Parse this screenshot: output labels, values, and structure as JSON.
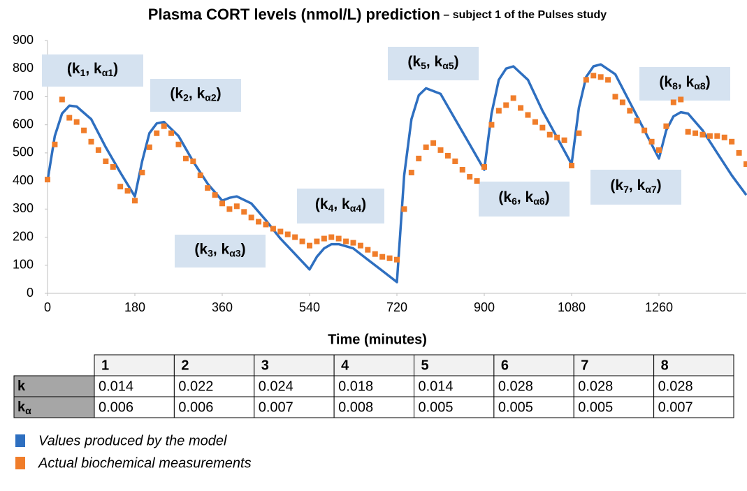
{
  "chart_data": {
    "type": "line",
    "title": "Plasma CORT levels (nmol/L) prediction",
    "subtitle": "– subject 1 of the Pulses study",
    "x_label": "Time (minutes)",
    "xlim": [
      0,
      1440
    ],
    "xticks": [
      0,
      180,
      360,
      540,
      720,
      900,
      1080,
      1260
    ],
    "ylim": [
      0,
      900
    ],
    "yticks": [
      0,
      100,
      200,
      300,
      400,
      500,
      600,
      700,
      800,
      900
    ],
    "series": [
      {
        "name": "Values produced by the model",
        "color": "#2e6fc0",
        "type": "line",
        "x": [
          0,
          15,
          30,
          45,
          60,
          90,
          120,
          150,
          180,
          195,
          210,
          225,
          240,
          270,
          300,
          330,
          360,
          375,
          390,
          420,
          450,
          480,
          510,
          540,
          555,
          570,
          585,
          600,
          630,
          660,
          690,
          720,
          735,
          750,
          765,
          780,
          810,
          840,
          870,
          900,
          915,
          930,
          945,
          960,
          990,
          1020,
          1050,
          1080,
          1095,
          1110,
          1125,
          1140,
          1170,
          1200,
          1230,
          1260,
          1275,
          1290,
          1305,
          1320,
          1350,
          1380,
          1410,
          1440
        ],
        "values": [
          400,
          560,
          640,
          668,
          665,
          620,
          520,
          430,
          345,
          470,
          570,
          605,
          610,
          560,
          470,
          390,
          330,
          340,
          345,
          320,
          260,
          195,
          140,
          85,
          130,
          160,
          175,
          175,
          160,
          120,
          80,
          40,
          420,
          620,
          705,
          730,
          710,
          620,
          530,
          440,
          640,
          760,
          800,
          808,
          760,
          650,
          555,
          460,
          660,
          770,
          808,
          815,
          780,
          680,
          580,
          480,
          580,
          630,
          645,
          640,
          580,
          500,
          420,
          350
        ]
      },
      {
        "name": "Actual biochemical measurements",
        "color": "#f07d2a",
        "type": "scatter",
        "x": [
          0,
          15,
          30,
          45,
          60,
          75,
          90,
          105,
          120,
          135,
          150,
          165,
          180,
          195,
          210,
          225,
          240,
          255,
          270,
          285,
          300,
          315,
          330,
          345,
          360,
          375,
          390,
          405,
          420,
          435,
          450,
          465,
          480,
          495,
          510,
          525,
          540,
          555,
          570,
          585,
          600,
          615,
          630,
          645,
          660,
          675,
          690,
          705,
          720,
          735,
          750,
          765,
          780,
          795,
          810,
          825,
          840,
          855,
          870,
          885,
          900,
          915,
          930,
          945,
          960,
          975,
          990,
          1005,
          1020,
          1035,
          1050,
          1065,
          1080,
          1095,
          1110,
          1125,
          1140,
          1155,
          1170,
          1185,
          1200,
          1215,
          1230,
          1245,
          1260,
          1275,
          1290,
          1305,
          1320,
          1335,
          1350,
          1365,
          1380,
          1395,
          1410,
          1425,
          1440
        ],
        "values": [
          405,
          530,
          690,
          625,
          610,
          580,
          540,
          510,
          470,
          450,
          380,
          365,
          330,
          430,
          520,
          570,
          595,
          570,
          530,
          480,
          470,
          420,
          375,
          350,
          320,
          300,
          310,
          290,
          270,
          255,
          245,
          230,
          220,
          210,
          200,
          185,
          170,
          185,
          195,
          200,
          195,
          185,
          180,
          170,
          155,
          140,
          130,
          125,
          120,
          300,
          430,
          480,
          520,
          535,
          510,
          490,
          470,
          440,
          415,
          400,
          450,
          600,
          650,
          670,
          695,
          660,
          635,
          610,
          590,
          565,
          555,
          545,
          455,
          570,
          760,
          775,
          770,
          760,
          700,
          680,
          650,
          615,
          580,
          540,
          510,
          595,
          680,
          690,
          575,
          570,
          565,
          560,
          560,
          555,
          540,
          500,
          460
        ]
      }
    ],
    "annotations": [
      {
        "parts": [
          "(k",
          "1",
          ", k",
          "α1",
          ")"
        ]
      },
      {
        "parts": [
          "(k",
          "2",
          ", k",
          "α2",
          ")"
        ]
      },
      {
        "parts": [
          "(k",
          "3",
          ", k",
          "α3",
          ")"
        ]
      },
      {
        "parts": [
          "(k",
          "4",
          ", k",
          "α4",
          ")"
        ]
      },
      {
        "parts": [
          "(k",
          "5",
          ", k",
          "α5",
          ")"
        ]
      },
      {
        "parts": [
          "(k",
          "6",
          ", k",
          "α6",
          ")"
        ]
      },
      {
        "parts": [
          "(k",
          "7",
          ", k",
          "α7",
          ")"
        ]
      },
      {
        "parts": [
          "(k",
          "8",
          ", k",
          "α8",
          ")"
        ]
      }
    ]
  },
  "table": {
    "columns": [
      "1",
      "2",
      "3",
      "4",
      "5",
      "6",
      "7",
      "8"
    ],
    "rows": [
      {
        "label": [
          "k"
        ],
        "cells": [
          0.014,
          0.022,
          0.024,
          0.018,
          0.014,
          0.028,
          0.028,
          0.028
        ]
      },
      {
        "label": [
          "k",
          "α"
        ],
        "cells": [
          0.006,
          0.006,
          0.007,
          0.008,
          0.005,
          0.005,
          0.005,
          0.007
        ]
      }
    ]
  }
}
